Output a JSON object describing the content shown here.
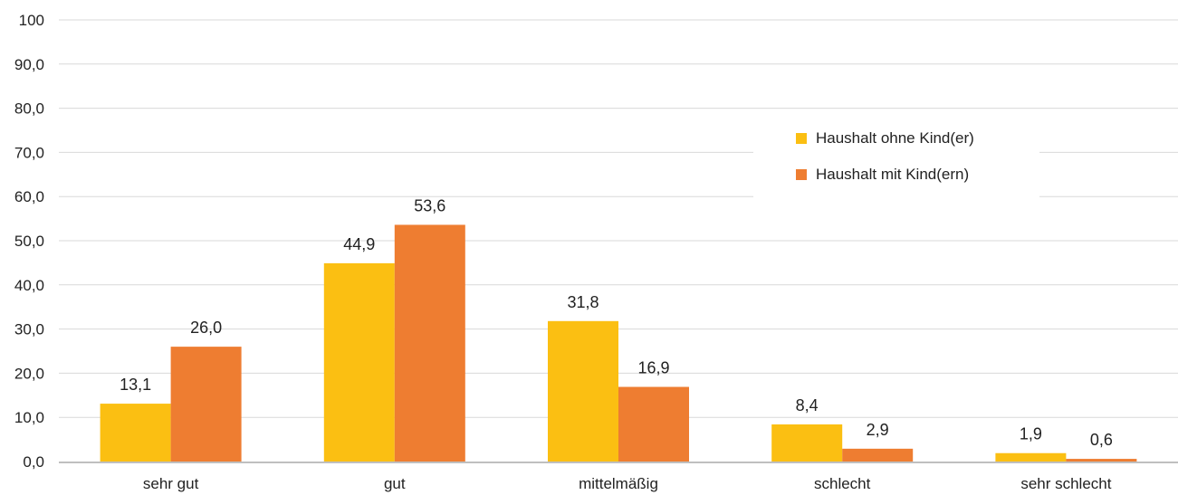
{
  "chart_data": {
    "type": "bar",
    "categories": [
      "sehr gut",
      "gut",
      "mittelmäßig",
      "schlecht",
      "sehr schlecht"
    ],
    "series": [
      {
        "name": "Haushalt ohne Kind(er)",
        "color": "#FBBF12",
        "values": [
          13.1,
          44.9,
          31.8,
          8.4,
          1.9
        ],
        "labels": [
          "13,1",
          "44,9",
          "31,8",
          "8,4",
          "1,9"
        ]
      },
      {
        "name": "Haushalt mit Kind(ern)",
        "color": "#EE7D31",
        "values": [
          26.0,
          53.6,
          16.9,
          2.9,
          0.6
        ],
        "labels": [
          "26,0",
          "53,6",
          "16,9",
          "2,9",
          "0,6"
        ]
      }
    ],
    "ylim": [
      0,
      100
    ],
    "yticks": [
      0,
      10,
      20,
      30,
      40,
      50,
      60,
      70,
      80,
      90,
      100
    ],
    "ytick_labels": [
      "0,0",
      "10,0",
      "20,0",
      "30,0",
      "40,0",
      "50,0",
      "60,0",
      "70,0",
      "80,0",
      "90,0",
      "100"
    ],
    "grid": true,
    "legend": "top-right",
    "gridline_color": "#d9d9d9",
    "axis_color": "#bfbfbf"
  }
}
